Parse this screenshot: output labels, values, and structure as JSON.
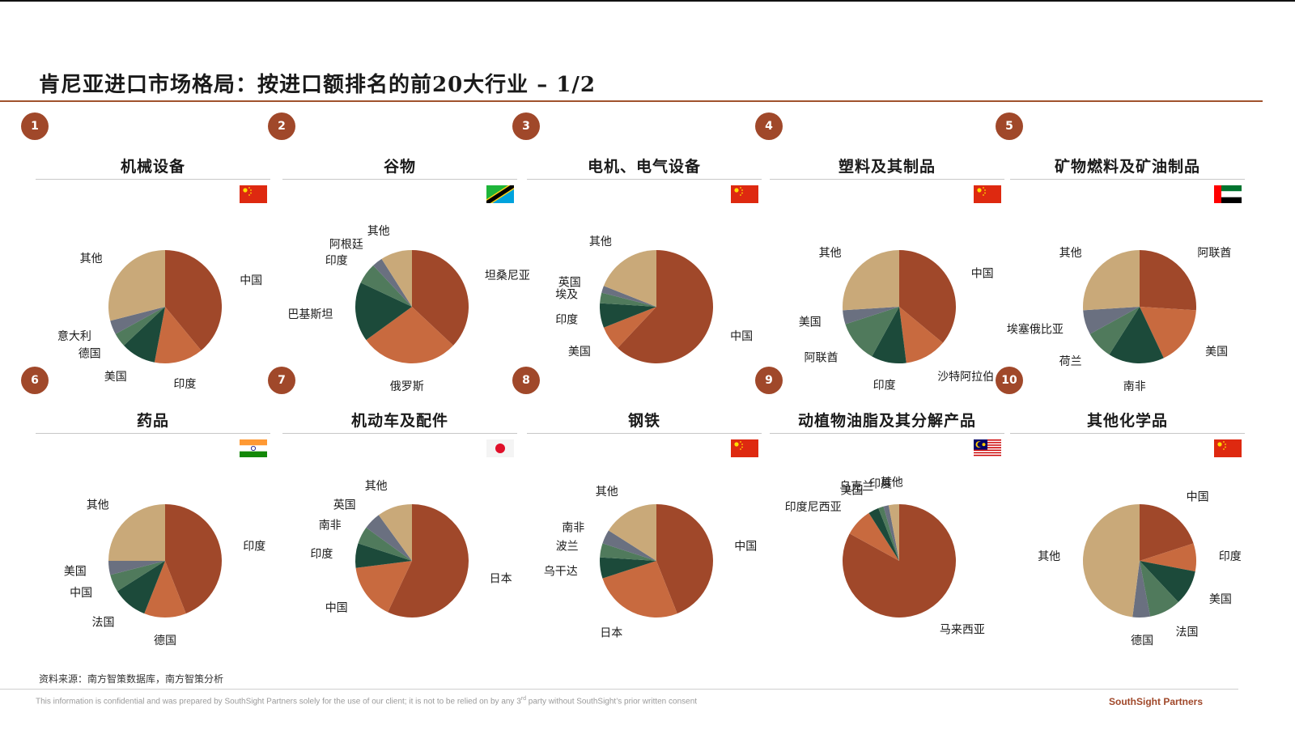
{
  "page": {
    "title": "肯尼亚进口市场格局：按进口额排名的前20大行业 – 1/2",
    "source": "资料来源：南方智策数据库，南方智策分析",
    "disclaimer_a": "This information is confidential and was prepared by SouthSight Partners solely for the use of our client; it is not to be relied on by any 3",
    "disclaimer_sup": "rd",
    "disclaimer_b": " party without SouthSight’s prior written consent",
    "brand": "SouthSight Partners"
  },
  "colors": {
    "accent": "#a0482a",
    "slices": [
      "#a0482a",
      "#c86a3f",
      "#1c4a3a",
      "#507a5c",
      "#6a7080",
      "#c9a979"
    ]
  },
  "chart_data": [
    {
      "type": "pie",
      "number": "1",
      "title": "机械设备",
      "flag": "china-flag",
      "labels": [
        "中国",
        "印度",
        "美国",
        "德国",
        "意大利",
        "其他"
      ],
      "values": [
        39,
        14,
        10,
        4,
        4,
        29
      ]
    },
    {
      "type": "pie",
      "number": "2",
      "title": "谷物",
      "flag": "tanzania-flag",
      "labels": [
        "坦桑尼亚",
        "俄罗斯",
        "巴基斯坦",
        "印度",
        "阿根廷",
        "其他"
      ],
      "values": [
        37,
        28,
        17,
        6,
        3,
        9
      ]
    },
    {
      "type": "pie",
      "number": "3",
      "title": "电机、电气设备",
      "flag": "china-flag",
      "labels": [
        "中国",
        "美国",
        "印度",
        "埃及",
        "英国",
        "其他"
      ],
      "values": [
        62,
        7,
        7,
        3,
        2,
        19
      ]
    },
    {
      "type": "pie",
      "number": "4",
      "title": "塑料及其制品",
      "flag": "china-flag",
      "labels": [
        "中国",
        "沙特阿拉伯",
        "印度",
        "阿联酋",
        "美国",
        "其他"
      ],
      "values": [
        36,
        12,
        10,
        12,
        4,
        26
      ]
    },
    {
      "type": "pie",
      "number": "5",
      "title": "矿物燃料及矿油制品",
      "flag": "uae-flag",
      "labels": [
        "阿联酋",
        "美国",
        "南非",
        "荷兰",
        "埃塞俄比亚",
        "其他"
      ],
      "values": [
        26,
        17,
        16,
        8,
        7,
        26
      ]
    },
    {
      "type": "pie",
      "number": "6",
      "title": "药品",
      "flag": "india-flag",
      "labels": [
        "印度",
        "德国",
        "法国",
        "中国",
        "美国",
        "其他"
      ],
      "values": [
        44,
        12,
        10,
        5,
        4,
        25
      ]
    },
    {
      "type": "pie",
      "number": "7",
      "title": "机动车及配件",
      "flag": "japan-flag",
      "labels": [
        "日本",
        "中国",
        "印度",
        "南非",
        "英国",
        "其他"
      ],
      "values": [
        57,
        16,
        7,
        5,
        5,
        10
      ]
    },
    {
      "type": "pie",
      "number": "8",
      "title": "钢铁",
      "flag": "china-flag",
      "labels": [
        "中国",
        "日本",
        "乌干达",
        "波兰",
        "南非",
        "其他"
      ],
      "values": [
        44,
        26,
        6,
        4,
        4,
        16
      ]
    },
    {
      "type": "pie",
      "number": "9",
      "title": "动植物油脂及其分解产品",
      "flag": "malaysia-flag",
      "labels": [
        "马来西亚",
        "印度尼西亚",
        "美国",
        "乌克兰",
        "印度",
        "其他"
      ],
      "values": [
        83,
        8,
        3,
        1.5,
        1.5,
        3
      ]
    },
    {
      "type": "pie",
      "number": "10",
      "title": "其他化学品",
      "flag": "china-flag",
      "labels": [
        "中国",
        "印度",
        "美国",
        "法国",
        "德国",
        "其他"
      ],
      "values": [
        20,
        8,
        10,
        9,
        5,
        48
      ]
    }
  ]
}
